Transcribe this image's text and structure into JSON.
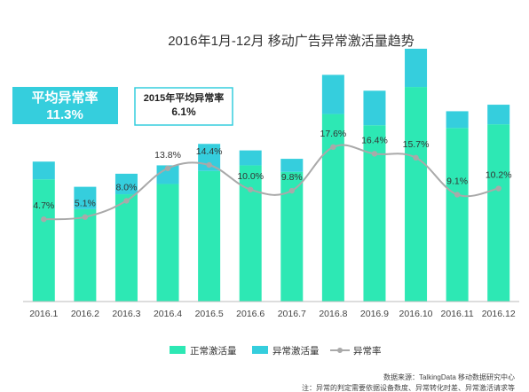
{
  "chart_data": {
    "type": "bar",
    "title": "2016年1月-12月 移动广告异常激活量趋势",
    "categories": [
      "2016.1",
      "2016.2",
      "2016.3",
      "2016.4",
      "2016.5",
      "2016.6",
      "2016.7",
      "2016.8",
      "2016.9",
      "2016.10",
      "2016.11",
      "2016.12"
    ],
    "stacked": true,
    "series": [
      {
        "name": "正常激活量",
        "type": "bar",
        "color": "#2de8b4",
        "values": [
          131,
          99,
          115,
          126,
          140,
          146,
          139,
          201,
          189,
          230,
          186,
          190
        ]
      },
      {
        "name": "异常激活量",
        "type": "bar",
        "color": "#35cedd",
        "values": [
          19,
          24,
          22,
          20,
          29,
          16,
          14,
          42,
          37,
          41,
          18,
          21
        ]
      },
      {
        "name": "异常率",
        "type": "line",
        "color": "#a9a9a9",
        "values": [
          4.7,
          5.1,
          8.0,
          13.8,
          14.4,
          10.0,
          9.8,
          17.6,
          16.4,
          15.7,
          9.1,
          10.2
        ],
        "labels": [
          "4.7%",
          "5.1%",
          "8.0%",
          "13.8%",
          "14.4%",
          "10.0%",
          "9.8%",
          "17.6%",
          "16.4%",
          "15.7%",
          "9.1%",
          "10.2%"
        ]
      }
    ],
    "ylim": [
      0,
      270
    ],
    "y2lim": [
      -10,
      35
    ],
    "grid": false,
    "legend_position": "bottom"
  },
  "highlights": {
    "avg_label": "平均异常率",
    "avg_value": "11.3%",
    "prev_label": "2015年平均异常率",
    "prev_value": "6.1%",
    "avg_box_color": "#35cedd"
  },
  "source": {
    "line1": "数据来源：TalkingData 移动数据研究中心",
    "line2": "注：异常的判定需要依据设备数度、异常转化时差、异常激活请求等"
  }
}
